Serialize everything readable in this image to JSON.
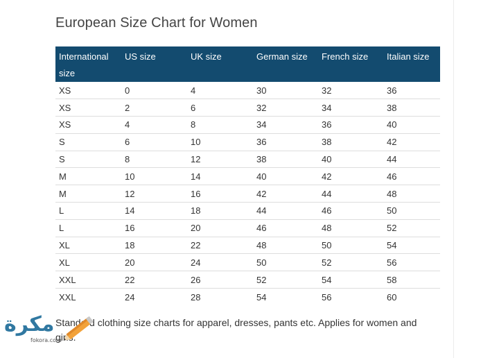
{
  "title": "European Size Chart for Women",
  "table": {
    "headers": [
      "International size",
      "US size",
      "UK size",
      "German size",
      "French size",
      "Italian size"
    ],
    "rows": [
      [
        "XS",
        "0",
        "4",
        "30",
        "32",
        "36"
      ],
      [
        "XS",
        "2",
        "6",
        "32",
        "34",
        "38"
      ],
      [
        "XS",
        "4",
        "8",
        "34",
        "36",
        "40"
      ],
      [
        "S",
        "6",
        "10",
        "36",
        "38",
        "42"
      ],
      [
        "S",
        "8",
        "12",
        "38",
        "40",
        "44"
      ],
      [
        "M",
        "10",
        "14",
        "40",
        "42",
        "46"
      ],
      [
        "M",
        "12",
        "16",
        "42",
        "44",
        "48"
      ],
      [
        "L",
        "14",
        "18",
        "44",
        "46",
        "50"
      ],
      [
        "L",
        "16",
        "20",
        "46",
        "48",
        "52"
      ],
      [
        "XL",
        "18",
        "22",
        "48",
        "50",
        "54"
      ],
      [
        "XL",
        "20",
        "24",
        "50",
        "52",
        "56"
      ],
      [
        "XXL",
        "22",
        "26",
        "52",
        "54",
        "58"
      ],
      [
        "XXL",
        "24",
        "28",
        "54",
        "56",
        "60"
      ]
    ]
  },
  "footnote": "Standard clothing size charts for apparel, dresses, pants etc. Applies for women and girls.",
  "watermark": {
    "text": "مكرة",
    "url": "fokora.com"
  },
  "colors": {
    "header_bg": "#134b6f",
    "header_text": "#ffffff",
    "row_border": "#dddddd",
    "watermark": "#1f6d9a",
    "pencil": "#f2a23a"
  }
}
